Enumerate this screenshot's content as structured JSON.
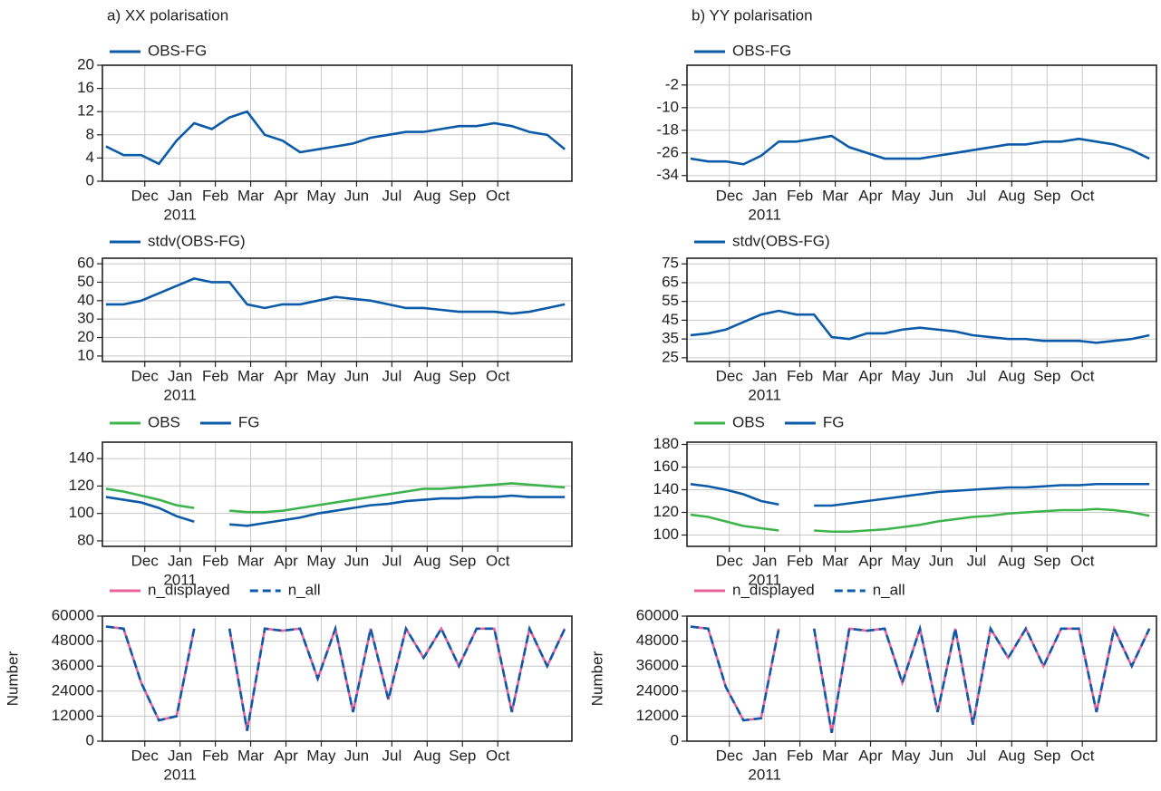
{
  "chart_data": [
    {
      "type": "line",
      "title": "a) XX polarisation",
      "x": [
        -0.1,
        0.4,
        0.9,
        1.4,
        1.9,
        2.4,
        2.9,
        3.4,
        3.9,
        4.4,
        4.9,
        5.4,
        5.9,
        6.4,
        6.9,
        7.4,
        7.9,
        8.4,
        8.9,
        9.4,
        9.9,
        10.4,
        10.9,
        11.4,
        11.9,
        12.4,
        12.9
      ],
      "xlim": [
        -0.2,
        13.1
      ],
      "xticks": [
        {
          "value": 1,
          "label": "Dec"
        },
        {
          "value": 2,
          "label": "Jan",
          "sublabel": "2011"
        },
        {
          "value": 3,
          "label": "Feb"
        },
        {
          "value": 4,
          "label": "Mar"
        },
        {
          "value": 5,
          "label": "Apr"
        },
        {
          "value": 6,
          "label": "May"
        },
        {
          "value": 7,
          "label": "Jun"
        },
        {
          "value": 8,
          "label": "Jul"
        },
        {
          "value": 9,
          "label": "Aug"
        },
        {
          "value": 10,
          "label": "Sep"
        },
        {
          "value": 11,
          "label": "Oct"
        }
      ],
      "ylim": [
        0,
        20
      ],
      "yticks": [
        0,
        4,
        8,
        12,
        16,
        20
      ],
      "grid": true,
      "series": [
        {
          "name": "OBS-FG",
          "color": "#0b5ba8",
          "values": [
            6,
            4.5,
            4.5,
            3,
            7,
            10,
            9,
            11,
            12,
            8,
            7,
            5,
            5.5,
            6,
            6.5,
            7.5,
            8,
            8.5,
            8.5,
            9,
            9.5,
            9.5,
            10,
            9.5,
            8.5,
            8,
            5.5
          ]
        }
      ]
    },
    {
      "type": "line",
      "x": [
        -0.1,
        0.4,
        0.9,
        1.4,
        1.9,
        2.4,
        2.9,
        3.4,
        3.9,
        4.4,
        4.9,
        5.4,
        5.9,
        6.4,
        6.9,
        7.4,
        7.9,
        8.4,
        8.9,
        9.4,
        9.9,
        10.4,
        10.9,
        11.4,
        11.9,
        12.4,
        12.9
      ],
      "xlim": [
        -0.2,
        13.1
      ],
      "xticks": [
        {
          "value": 1,
          "label": "Dec"
        },
        {
          "value": 2,
          "label": "Jan",
          "sublabel": "2011"
        },
        {
          "value": 3,
          "label": "Feb"
        },
        {
          "value": 4,
          "label": "Mar"
        },
        {
          "value": 5,
          "label": "Apr"
        },
        {
          "value": 6,
          "label": "May"
        },
        {
          "value": 7,
          "label": "Jun"
        },
        {
          "value": 8,
          "label": "Jul"
        },
        {
          "value": 9,
          "label": "Aug"
        },
        {
          "value": 10,
          "label": "Sep"
        },
        {
          "value": 11,
          "label": "Oct"
        }
      ],
      "ylim": [
        7,
        63
      ],
      "yticks": [
        10,
        20,
        30,
        40,
        50,
        60
      ],
      "grid": true,
      "series": [
        {
          "name": "stdv(OBS-FG)",
          "color": "#0b5ba8",
          "values": [
            38,
            38,
            40,
            44,
            48,
            52,
            50,
            50,
            38,
            36,
            38,
            38,
            40,
            42,
            41,
            40,
            38,
            36,
            36,
            35,
            34,
            34,
            34,
            33,
            34,
            36,
            38
          ]
        }
      ]
    },
    {
      "type": "line",
      "x": [
        -0.1,
        0.4,
        0.9,
        1.4,
        1.9,
        2.4,
        2.9,
        3.4,
        3.9,
        4.4,
        4.9,
        5.4,
        5.9,
        6.4,
        6.9,
        7.4,
        7.9,
        8.4,
        8.9,
        9.4,
        9.9,
        10.4,
        10.9,
        11.4,
        11.9,
        12.4,
        12.9
      ],
      "xlim": [
        -0.2,
        13.1
      ],
      "xticks": [
        {
          "value": 1,
          "label": "Dec"
        },
        {
          "value": 2,
          "label": "Jan",
          "sublabel": "2011"
        },
        {
          "value": 3,
          "label": "Feb"
        },
        {
          "value": 4,
          "label": "Mar"
        },
        {
          "value": 5,
          "label": "Apr"
        },
        {
          "value": 6,
          "label": "May"
        },
        {
          "value": 7,
          "label": "Jun"
        },
        {
          "value": 8,
          "label": "Jul"
        },
        {
          "value": 9,
          "label": "Aug"
        },
        {
          "value": 10,
          "label": "Sep"
        },
        {
          "value": 11,
          "label": "Oct"
        }
      ],
      "ylim": [
        76,
        152
      ],
      "yticks": [
        80,
        100,
        120,
        140
      ],
      "grid": true,
      "series": [
        {
          "name": "OBS",
          "color": "#3cb44b",
          "values": [
            118,
            116,
            113,
            110,
            106,
            104,
            null,
            102,
            101,
            101,
            102,
            104,
            106,
            108,
            110,
            112,
            114,
            116,
            118,
            118,
            119,
            120,
            121,
            122,
            121,
            120,
            119
          ]
        },
        {
          "name": "FG",
          "color": "#0b5ba8",
          "values": [
            112,
            110,
            108,
            104,
            98,
            94,
            null,
            92,
            91,
            93,
            95,
            97,
            100,
            102,
            104,
            106,
            107,
            109,
            110,
            111,
            111,
            112,
            112,
            113,
            112,
            112,
            112
          ]
        }
      ]
    },
    {
      "type": "line",
      "ylabel": "Number",
      "x": [
        -0.1,
        0.4,
        0.9,
        1.4,
        1.9,
        2.4,
        2.9,
        3.4,
        3.9,
        4.4,
        4.9,
        5.4,
        5.9,
        6.4,
        6.9,
        7.4,
        7.9,
        8.4,
        8.9,
        9.4,
        9.9,
        10.4,
        10.9,
        11.4,
        11.9,
        12.4,
        12.9
      ],
      "xlim": [
        -0.2,
        13.1
      ],
      "xticks": [
        {
          "value": 1,
          "label": "Dec"
        },
        {
          "value": 2,
          "label": "Jan",
          "sublabel": "2011"
        },
        {
          "value": 3,
          "label": "Feb"
        },
        {
          "value": 4,
          "label": "Mar"
        },
        {
          "value": 5,
          "label": "Apr"
        },
        {
          "value": 6,
          "label": "May"
        },
        {
          "value": 7,
          "label": "Jun"
        },
        {
          "value": 8,
          "label": "Jul"
        },
        {
          "value": 9,
          "label": "Aug"
        },
        {
          "value": 10,
          "label": "Sep"
        },
        {
          "value": 11,
          "label": "Oct"
        }
      ],
      "ylim": [
        0,
        60000
      ],
      "yticks": [
        0,
        12000,
        24000,
        36000,
        48000,
        60000
      ],
      "grid": true,
      "series": [
        {
          "name": "n_displayed",
          "color": "#e8609c",
          "values": [
            55000,
            54000,
            28000,
            10000,
            12000,
            54000,
            null,
            54000,
            5000,
            54000,
            53000,
            54000,
            30000,
            54000,
            14000,
            54000,
            20000,
            54000,
            40000,
            54000,
            36000,
            54000,
            54000,
            14000,
            54000,
            36000,
            54000
          ]
        },
        {
          "name": "n_all",
          "color": "#0b5ba8",
          "dash": true,
          "values": [
            55000,
            54000,
            28000,
            10000,
            12000,
            54000,
            null,
            54000,
            5000,
            54000,
            53000,
            54000,
            30000,
            54000,
            14000,
            54000,
            20000,
            54000,
            40000,
            54000,
            36000,
            54000,
            54000,
            14000,
            54000,
            36000,
            54000
          ]
        }
      ]
    },
    {
      "type": "line",
      "title": "b) YY polarisation",
      "x": [
        -0.1,
        0.4,
        0.9,
        1.4,
        1.9,
        2.4,
        2.9,
        3.4,
        3.9,
        4.4,
        4.9,
        5.4,
        5.9,
        6.4,
        6.9,
        7.4,
        7.9,
        8.4,
        8.9,
        9.4,
        9.9,
        10.4,
        10.9,
        11.4,
        11.9,
        12.4,
        12.9
      ],
      "xlim": [
        -0.2,
        13.1
      ],
      "xticks": [
        {
          "value": 1,
          "label": "Dec"
        },
        {
          "value": 2,
          "label": "Jan",
          "sublabel": "2011"
        },
        {
          "value": 3,
          "label": "Feb"
        },
        {
          "value": 4,
          "label": "Mar"
        },
        {
          "value": 5,
          "label": "Apr"
        },
        {
          "value": 6,
          "label": "May"
        },
        {
          "value": 7,
          "label": "Jun"
        },
        {
          "value": 8,
          "label": "Jul"
        },
        {
          "value": 9,
          "label": "Aug"
        },
        {
          "value": 10,
          "label": "Sep"
        },
        {
          "value": 11,
          "label": "Oct"
        }
      ],
      "ylim": [
        -36,
        5
      ],
      "yticks": [
        -34,
        -26,
        -18,
        -10,
        -2
      ],
      "grid": true,
      "series": [
        {
          "name": "OBS-FG",
          "color": "#0b5ba8",
          "values": [
            -28,
            -29,
            -29,
            -30,
            -27,
            -22,
            -22,
            -21,
            -20,
            -24,
            -26,
            -28,
            -28,
            -28,
            -27,
            -26,
            -25,
            -24,
            -23,
            -23,
            -22,
            -22,
            -21,
            -22,
            -23,
            -25,
            -28
          ]
        }
      ]
    },
    {
      "type": "line",
      "x": [
        -0.1,
        0.4,
        0.9,
        1.4,
        1.9,
        2.4,
        2.9,
        3.4,
        3.9,
        4.4,
        4.9,
        5.4,
        5.9,
        6.4,
        6.9,
        7.4,
        7.9,
        8.4,
        8.9,
        9.4,
        9.9,
        10.4,
        10.9,
        11.4,
        11.9,
        12.4,
        12.9
      ],
      "xlim": [
        -0.2,
        13.1
      ],
      "xticks": [
        {
          "value": 1,
          "label": "Dec"
        },
        {
          "value": 2,
          "label": "Jan",
          "sublabel": "2011"
        },
        {
          "value": 3,
          "label": "Feb"
        },
        {
          "value": 4,
          "label": "Mar"
        },
        {
          "value": 5,
          "label": "Apr"
        },
        {
          "value": 6,
          "label": "May"
        },
        {
          "value": 7,
          "label": "Jun"
        },
        {
          "value": 8,
          "label": "Jul"
        },
        {
          "value": 9,
          "label": "Aug"
        },
        {
          "value": 10,
          "label": "Sep"
        },
        {
          "value": 11,
          "label": "Oct"
        }
      ],
      "ylim": [
        23,
        78
      ],
      "yticks": [
        25,
        35,
        45,
        55,
        65,
        75
      ],
      "grid": true,
      "series": [
        {
          "name": "stdv(OBS-FG)",
          "color": "#0b5ba8",
          "values": [
            37,
            38,
            40,
            44,
            48,
            50,
            48,
            48,
            36,
            35,
            38,
            38,
            40,
            41,
            40,
            39,
            37,
            36,
            35,
            35,
            34,
            34,
            34,
            33,
            34,
            35,
            37
          ]
        }
      ]
    },
    {
      "type": "line",
      "x": [
        -0.1,
        0.4,
        0.9,
        1.4,
        1.9,
        2.4,
        2.9,
        3.4,
        3.9,
        4.4,
        4.9,
        5.4,
        5.9,
        6.4,
        6.9,
        7.4,
        7.9,
        8.4,
        8.9,
        9.4,
        9.9,
        10.4,
        10.9,
        11.4,
        11.9,
        12.4,
        12.9
      ],
      "xlim": [
        -0.2,
        13.1
      ],
      "xticks": [
        {
          "value": 1,
          "label": "Dec"
        },
        {
          "value": 2,
          "label": "Jan",
          "sublabel": "2011"
        },
        {
          "value": 3,
          "label": "Feb"
        },
        {
          "value": 4,
          "label": "Mar"
        },
        {
          "value": 5,
          "label": "Apr"
        },
        {
          "value": 6,
          "label": "May"
        },
        {
          "value": 7,
          "label": "Jun"
        },
        {
          "value": 8,
          "label": "Jul"
        },
        {
          "value": 9,
          "label": "Aug"
        },
        {
          "value": 10,
          "label": "Sep"
        },
        {
          "value": 11,
          "label": "Oct"
        }
      ],
      "ylim": [
        90,
        182
      ],
      "yticks": [
        100,
        120,
        140,
        160,
        180
      ],
      "grid": true,
      "series": [
        {
          "name": "OBS",
          "color": "#3cb44b",
          "values": [
            118,
            116,
            112,
            108,
            106,
            104,
            null,
            104,
            103,
            103,
            104,
            105,
            107,
            109,
            112,
            114,
            116,
            117,
            119,
            120,
            121,
            122,
            122,
            123,
            122,
            120,
            117
          ]
        },
        {
          "name": "FG",
          "color": "#0b5ba8",
          "values": [
            145,
            143,
            140,
            136,
            130,
            127,
            null,
            126,
            126,
            128,
            130,
            132,
            134,
            136,
            138,
            139,
            140,
            141,
            142,
            142,
            143,
            144,
            144,
            145,
            145,
            145,
            145
          ]
        }
      ]
    },
    {
      "type": "line",
      "ylabel": "Number",
      "x": [
        -0.1,
        0.4,
        0.9,
        1.4,
        1.9,
        2.4,
        2.9,
        3.4,
        3.9,
        4.4,
        4.9,
        5.4,
        5.9,
        6.4,
        6.9,
        7.4,
        7.9,
        8.4,
        8.9,
        9.4,
        9.9,
        10.4,
        10.9,
        11.4,
        11.9,
        12.4,
        12.9
      ],
      "xlim": [
        -0.2,
        13.1
      ],
      "xticks": [
        {
          "value": 1,
          "label": "Dec"
        },
        {
          "value": 2,
          "label": "Jan",
          "sublabel": "2011"
        },
        {
          "value": 3,
          "label": "Feb"
        },
        {
          "value": 4,
          "label": "Mar"
        },
        {
          "value": 5,
          "label": "Apr"
        },
        {
          "value": 6,
          "label": "May"
        },
        {
          "value": 7,
          "label": "Jun"
        },
        {
          "value": 8,
          "label": "Jul"
        },
        {
          "value": 9,
          "label": "Aug"
        },
        {
          "value": 10,
          "label": "Sep"
        },
        {
          "value": 11,
          "label": "Oct"
        }
      ],
      "ylim": [
        0,
        60000
      ],
      "yticks": [
        0,
        12000,
        24000,
        36000,
        48000,
        60000
      ],
      "grid": true,
      "series": [
        {
          "name": "n_displayed",
          "color": "#e8609c",
          "values": [
            55000,
            54000,
            26000,
            10000,
            11000,
            54000,
            null,
            54000,
            4000,
            54000,
            53000,
            54000,
            28000,
            54000,
            14000,
            54000,
            8000,
            54000,
            40000,
            54000,
            36000,
            54000,
            54000,
            14000,
            54000,
            36000,
            54000
          ]
        },
        {
          "name": "n_all",
          "color": "#0b5ba8",
          "dash": true,
          "values": [
            55000,
            54000,
            26000,
            10000,
            11000,
            54000,
            null,
            54000,
            4000,
            54000,
            53000,
            54000,
            28000,
            54000,
            14000,
            54000,
            8000,
            54000,
            40000,
            54000,
            36000,
            54000,
            54000,
            14000,
            54000,
            36000,
            54000
          ]
        }
      ]
    }
  ]
}
